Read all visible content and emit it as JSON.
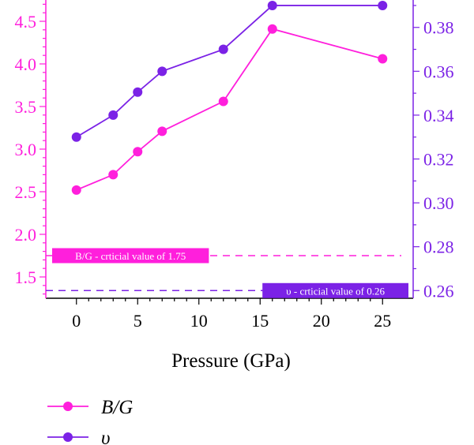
{
  "chart_data": {
    "type": "line",
    "xlabel": "Pressure (GPa)",
    "x": [
      0,
      3,
      5,
      7,
      12,
      16,
      25
    ],
    "xlim": [
      -2.5,
      27.5
    ],
    "xticks": [
      0,
      5,
      10,
      15,
      20,
      25
    ],
    "y_left": {
      "lim": [
        1.25,
        4.75
      ],
      "ticks": [
        1.5,
        2.0,
        2.5,
        3.0,
        3.5,
        4.0,
        4.5
      ],
      "tick_labels": [
        "1.5",
        "2.0",
        "2.5",
        "3.0",
        "3.5",
        "4.0",
        "4.5"
      ],
      "color": "#ff1fdc"
    },
    "y_right": {
      "lim": [
        0.2565,
        0.3925
      ],
      "ticks": [
        0.26,
        0.28,
        0.3,
        0.32,
        0.34,
        0.36,
        0.38
      ],
      "tick_labels": [
        "0.26",
        "0.28",
        "0.30",
        "0.32",
        "0.34",
        "0.36",
        "0.38"
      ],
      "color": "#7b22e6"
    },
    "series": [
      {
        "name": "B/G",
        "axis": "left",
        "color": "#ff1fdc",
        "values": [
          2.52,
          2.7,
          2.97,
          3.21,
          3.56,
          4.41,
          4.06
        ]
      },
      {
        "name": "υ",
        "axis": "right",
        "color": "#7b22e6",
        "values": [
          0.33,
          0.34,
          0.3505,
          0.36,
          0.37,
          0.39,
          0.39
        ]
      }
    ],
    "reference_lines": [
      {
        "axis": "left",
        "value": 1.75,
        "label": "B/G - crticial value of 1.75",
        "color": "#ff1fdc"
      },
      {
        "axis": "right",
        "value": 0.26,
        "label": "υ - crticial value of 0.26",
        "color": "#7b22e6"
      }
    ],
    "legend_position": "bottom-left",
    "grid": false
  }
}
